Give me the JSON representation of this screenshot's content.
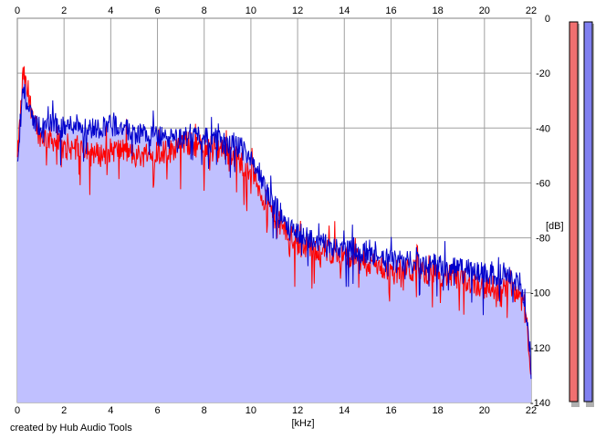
{
  "credit": "created by Hub Audio Tools",
  "colors": {
    "fill": "#c0c0ff",
    "grid": "#a0a0a0",
    "channel_red": "#ff0000",
    "channel_blue": "#0000cc",
    "meter_red": "#f07070",
    "meter_blue": "#8080f0"
  },
  "chart_data": {
    "type": "line",
    "title": "",
    "xlabel": "[kHz]",
    "ylabel": "[dB]",
    "xlim": [
      0,
      22
    ],
    "ylim": [
      -140,
      0
    ],
    "x_ticks": [
      "0",
      "2",
      "4",
      "6",
      "8",
      "10",
      "12",
      "14",
      "16",
      "18",
      "20",
      "22"
    ],
    "y_ticks": [
      "0",
      "-20",
      "-40",
      "-60",
      "-80",
      "-100",
      "-120",
      "-140"
    ],
    "grid": true,
    "x": [
      0,
      0.25,
      0.5,
      1,
      1.5,
      2,
      2.5,
      3,
      3.5,
      4,
      4.5,
      5,
      5.5,
      6,
      6.5,
      7,
      7.5,
      8,
      8.5,
      9,
      9.5,
      10,
      10.5,
      11,
      11.5,
      12,
      12.5,
      13,
      13.5,
      14,
      15,
      16,
      17,
      18,
      19,
      20,
      20.5,
      21,
      21.5,
      21.8,
      22
    ],
    "series": [
      {
        "color": "#ff0000",
        "values": [
          -52,
          -20,
          -30,
          -43,
          -44,
          -48,
          -47,
          -47,
          -50,
          -48,
          -48,
          -50,
          -50,
          -48,
          -49,
          -45,
          -46,
          -47,
          -47,
          -48,
          -52,
          -55,
          -65,
          -72,
          -78,
          -82,
          -83,
          -85,
          -85,
          -87,
          -89,
          -92,
          -92,
          -93,
          -95,
          -98,
          -98,
          -97,
          -100,
          -110,
          -132
        ]
      },
      {
        "color": "#0000cc",
        "values": [
          -52,
          -24,
          -35,
          -40,
          -38,
          -40,
          -38,
          -40,
          -40,
          -38,
          -40,
          -42,
          -42,
          -43,
          -44,
          -44,
          -42,
          -43,
          -44,
          -46,
          -47,
          -50,
          -60,
          -68,
          -74,
          -78,
          -80,
          -82,
          -83,
          -84,
          -86,
          -88,
          -89,
          -90,
          -91,
          -93,
          -94,
          -92,
          -96,
          -110,
          -128
        ]
      }
    ]
  },
  "meters": [
    {
      "color": "#f07070",
      "level": 1.0
    },
    {
      "color": "#8080f0",
      "level": 1.0
    }
  ]
}
